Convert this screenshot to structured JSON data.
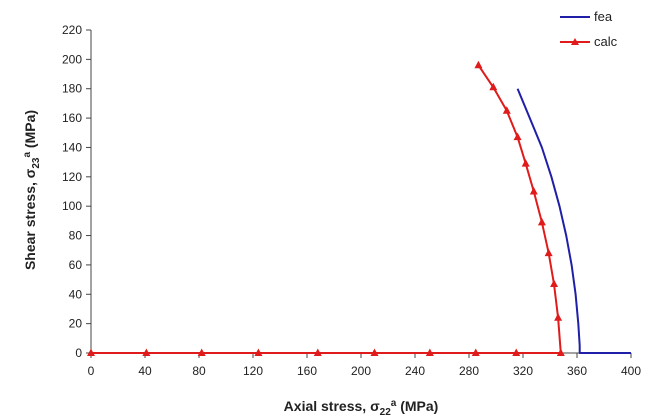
{
  "chart_data": {
    "type": "line",
    "xlim": [
      0,
      400
    ],
    "ylim": [
      0,
      220
    ],
    "xticks": [
      0,
      40,
      80,
      120,
      160,
      200,
      240,
      280,
      320,
      360,
      400
    ],
    "yticks": [
      0,
      20,
      40,
      60,
      80,
      100,
      120,
      140,
      160,
      180,
      200,
      220
    ],
    "xlabel": {
      "main": "Axial stress, ",
      "sym": "σ",
      "sub": "22",
      "sup": "a",
      "unit": " (MPa)"
    },
    "ylabel": {
      "main": "Shear stress, ",
      "sym": "σ",
      "sub": "23",
      "sup": "a",
      "unit": " (MPa)"
    },
    "grid": false,
    "legend_position": "top-right",
    "series": [
      {
        "name": "fea",
        "color": "#1f1fa8",
        "marker": "none",
        "points": [
          [
            316,
            180
          ],
          [
            325,
            160
          ],
          [
            334,
            140
          ],
          [
            341,
            120
          ],
          [
            347,
            100
          ],
          [
            352,
            80
          ],
          [
            356,
            60
          ],
          [
            359,
            40
          ],
          [
            361,
            20
          ],
          [
            362,
            5
          ],
          [
            362,
            0
          ],
          [
            400,
            0
          ]
        ]
      },
      {
        "name": "calc",
        "color": "#e01b1b",
        "marker": "triangle",
        "points": [
          [
            287,
            196
          ],
          [
            298,
            181
          ],
          [
            308,
            165
          ],
          [
            316,
            147
          ],
          [
            322,
            129
          ],
          [
            328,
            110
          ],
          [
            334,
            89
          ],
          [
            339,
            68
          ],
          [
            343,
            47
          ],
          [
            346,
            24
          ],
          [
            348,
            0
          ],
          [
            315,
            0
          ],
          [
            285,
            0
          ],
          [
            251,
            0
          ],
          [
            210,
            0
          ],
          [
            168,
            0
          ],
          [
            124,
            0
          ],
          [
            82,
            0
          ],
          [
            41,
            0
          ],
          [
            0,
            0
          ]
        ]
      }
    ]
  }
}
